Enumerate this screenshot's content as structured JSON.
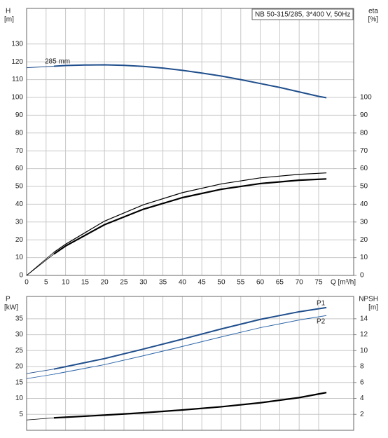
{
  "chart_data": [
    {
      "type": "line",
      "x_label": "Q [m³/h]",
      "y_label": "H",
      "y_unit": "[m]",
      "y2_label": "eta",
      "y2_unit": "[%]",
      "annotations": [
        "285 mm",
        "NB 50-315/285, 3*400 V, 50Hz"
      ],
      "xlim": [
        0,
        84
      ],
      "xticks": [
        0,
        5,
        10,
        15,
        20,
        25,
        30,
        35,
        40,
        45,
        50,
        55,
        60,
        65,
        70,
        75
      ],
      "ylim": [
        0,
        150
      ],
      "yticks": [
        0,
        10,
        20,
        30,
        40,
        50,
        60,
        70,
        80,
        90,
        100,
        110,
        120,
        130
      ],
      "y2lim": [
        0,
        150
      ],
      "y2ticks": [
        0,
        10,
        20,
        30,
        40,
        50,
        60,
        70,
        80,
        90,
        100
      ],
      "grid": true,
      "series": [
        {
          "color": "#1f4e8c",
          "width": 2,
          "x": [
            7,
            10,
            15,
            20,
            25,
            30,
            35,
            40,
            45,
            50,
            55,
            60,
            65,
            70,
            75,
            77
          ],
          "values": [
            117.5,
            117.9,
            118.2,
            118.3,
            118.0,
            117.4,
            116.5,
            115.2,
            113.7,
            112.0,
            110.0,
            107.8,
            105.6,
            103.1,
            100.6,
            99.8
          ]
        },
        {
          "color": "#1f4e8c",
          "width": 1,
          "x": [
            0,
            7
          ],
          "values": [
            116.7,
            117.5
          ]
        },
        {
          "color": "#000000",
          "width": 1.2,
          "axis": "y2",
          "x": [
            7,
            10,
            20,
            30,
            40,
            50,
            60,
            70,
            77
          ],
          "values": [
            13,
            17.5,
            30.5,
            39.7,
            46.5,
            51.4,
            54.8,
            56.8,
            57.6
          ]
        },
        {
          "color": "#000000",
          "width": 2.2,
          "axis": "y2",
          "x": [
            7,
            10,
            20,
            30,
            40,
            50,
            60,
            70,
            77
          ],
          "values": [
            12,
            16.5,
            28.5,
            37.2,
            43.7,
            48.4,
            51.6,
            53.5,
            54.2
          ]
        },
        {
          "color": "#000000",
          "width": 0.8,
          "axis": "y2",
          "x": [
            0,
            7
          ],
          "values": [
            0,
            13
          ]
        },
        {
          "color": "#000000",
          "width": 0.8,
          "axis": "y2",
          "x": [
            0,
            7
          ],
          "values": [
            0,
            12
          ]
        }
      ]
    },
    {
      "type": "line",
      "y_label": "P",
      "y_unit": "[kW]",
      "y2_label": "NPSH",
      "y2_unit": "[m]",
      "annotations": [
        "P1",
        "P2"
      ],
      "xlim": [
        0,
        84
      ],
      "xticks": [
        0,
        5,
        10,
        15,
        20,
        25,
        30,
        35,
        40,
        45,
        50,
        55,
        60,
        65,
        70,
        75
      ],
      "ylim": [
        0,
        42
      ],
      "yticks": [
        5,
        10,
        15,
        20,
        25,
        30,
        35
      ],
      "y2lim": [
        0,
        16.8
      ],
      "y2ticks": [
        2,
        4,
        6,
        8,
        10,
        12,
        14
      ],
      "grid": true,
      "series": [
        {
          "name": "P1",
          "color": "#1f4e8c",
          "width": 2,
          "x": [
            7,
            20,
            30,
            40,
            50,
            60,
            70,
            77
          ],
          "values": [
            19.2,
            22.5,
            25.5,
            28.6,
            31.8,
            34.8,
            37.2,
            38.5
          ]
        },
        {
          "name": "P2",
          "color": "#2a64a8",
          "width": 1,
          "x": [
            7,
            20,
            30,
            40,
            50,
            60,
            70,
            77
          ],
          "values": [
            17.6,
            20.6,
            23.4,
            26.3,
            29.3,
            32.2,
            34.6,
            36.0
          ]
        },
        {
          "color": "#1f4e8c",
          "width": 0.8,
          "x": [
            0,
            7
          ],
          "values": [
            17.8,
            19.2
          ]
        },
        {
          "color": "#2a64a8",
          "width": 0.8,
          "x": [
            0,
            7
          ],
          "values": [
            16.2,
            17.6
          ]
        },
        {
          "color": "#000000",
          "width": 2.2,
          "axis": "y2",
          "x": [
            7,
            20,
            30,
            40,
            50,
            60,
            70,
            77
          ],
          "values": [
            1.56,
            1.9,
            2.2,
            2.55,
            2.95,
            3.45,
            4.1,
            4.74
          ]
        },
        {
          "color": "#000000",
          "width": 0.8,
          "axis": "y2",
          "x": [
            0,
            7
          ],
          "values": [
            1.3,
            1.56
          ]
        }
      ]
    }
  ]
}
